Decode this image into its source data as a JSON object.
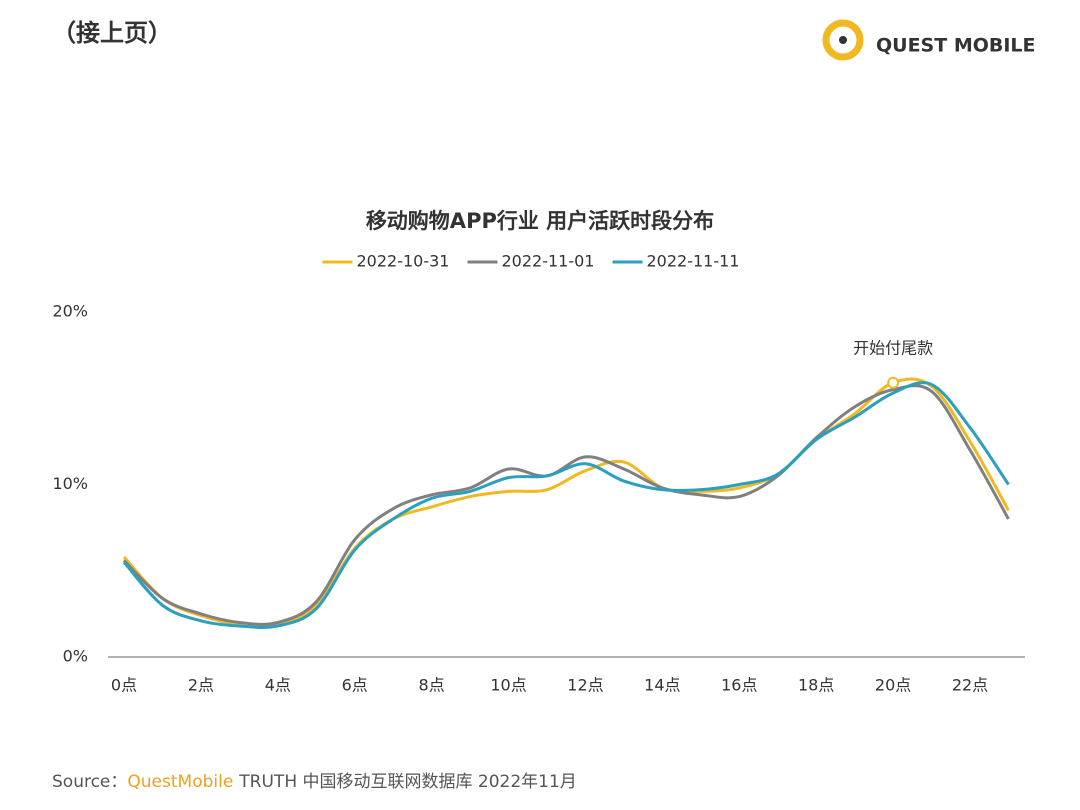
{
  "header": {
    "title": "（接上页）",
    "logo": "QUEST MOBILE"
  },
  "chart_data": {
    "type": "line",
    "title": "移动购物APP行业 用户活跃时段分布",
    "categories": [
      "0点",
      null,
      "2点",
      null,
      "4点",
      null,
      "6点",
      null,
      "8点",
      null,
      "10点",
      null,
      "12点",
      null,
      "14点",
      null,
      "16点",
      null,
      "18点",
      null,
      "20点",
      null,
      "22点",
      null
    ],
    "series": [
      {
        "name": "2022-10-31",
        "color": "#f2b820",
        "values": [
          5.8,
          3.4,
          2.4,
          1.9,
          1.9,
          3.0,
          6.3,
          8.0,
          8.7,
          9.3,
          9.6,
          9.7,
          10.8,
          11.3,
          9.8,
          9.6,
          9.8,
          10.6,
          12.6,
          14.1,
          15.9,
          15.7,
          12.5,
          8.5
        ]
      },
      {
        "name": "2022-11-01",
        "color": "#808080",
        "values": [
          5.6,
          3.4,
          2.5,
          2.0,
          2.0,
          3.2,
          6.8,
          8.6,
          9.4,
          9.8,
          10.9,
          10.5,
          11.6,
          10.9,
          9.8,
          9.4,
          9.3,
          10.5,
          12.7,
          14.5,
          15.5,
          15.4,
          12.0,
          8.0
        ]
      },
      {
        "name": "2022-11-11",
        "color": "#2a9fc0",
        "values": [
          5.5,
          3.0,
          2.1,
          1.8,
          1.8,
          2.8,
          6.2,
          8.0,
          9.2,
          9.6,
          10.4,
          10.5,
          11.2,
          10.2,
          9.7,
          9.7,
          10.0,
          10.6,
          12.6,
          13.9,
          15.3,
          15.8,
          13.3,
          10.0
        ]
      }
    ],
    "ylim": [
      0,
      20
    ],
    "yticks": [
      {
        "value": 0,
        "label": "0%"
      },
      {
        "value": 10,
        "label": "10%"
      },
      {
        "value": 20,
        "label": "20%"
      }
    ],
    "annotations": [
      "开始付尾款"
    ],
    "grid": false,
    "legend": "top"
  },
  "source": {
    "label": "Source：",
    "brand": "QuestMobile",
    "text": "TRUTH 中国移动互联网数据库 2022年11月"
  }
}
